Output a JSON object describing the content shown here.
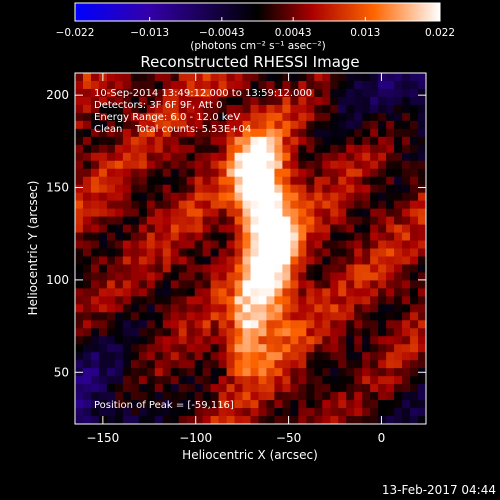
{
  "chart_data": {
    "type": "heatmap",
    "title": "Reconstructed RHESSI Image",
    "xlabel": "Heliocentric X (arcsec)",
    "ylabel": "Heliocentric Y (arcsec)",
    "xlim": [
      -165,
      24
    ],
    "ylim": [
      22,
      212
    ],
    "x_ticks": [
      -150,
      -100,
      -50,
      0
    ],
    "y_ticks": [
      50,
      100,
      150,
      200
    ],
    "colorbar": {
      "range": [
        -0.022,
        0.022
      ],
      "tick_values": [
        -0.022,
        -0.013,
        -0.0043,
        0.0043,
        0.013,
        0.022
      ],
      "tick_labels": [
        "−0.022",
        "−0.013",
        "−0.0043",
        "0.0043",
        "0.013",
        "0.022"
      ],
      "unit_label": "(photons cm⁻² s⁻¹ asec⁻²)",
      "colormap": "heat",
      "colors": [
        "#0000ff",
        "#3300aa",
        "#000000",
        "#aa0000",
        "#ff6600",
        "#ffffff"
      ]
    },
    "annotations": [
      "10-Sep-2014 13:49:12.000 to 13:59:12.000",
      "Detectors: 3F 6F 9F, Att 0",
      "Energy Range: 6.0 - 12.0 keV",
      "Clean    Total counts: 5.53E+04"
    ],
    "peak": {
      "label": "Position of Peak = [-59,116]",
      "x": -59,
      "y": 116
    },
    "source_features": [
      {
        "x": -60,
        "y": 120,
        "intensity": 0.022,
        "extent_x": 10,
        "extent_y": 35
      },
      {
        "x": -70,
        "y": 158,
        "intensity": 0.016,
        "extent_x": 8,
        "extent_y": 15
      },
      {
        "x": -72,
        "y": 80,
        "intensity": 0.011,
        "extent_x": 6,
        "extent_y": 12
      },
      {
        "x": -75,
        "y": 60,
        "intensity": 0.009,
        "extent_x": 6,
        "extent_y": 10
      }
    ]
  },
  "footer": {
    "date": "13-Feb-2017 04:44"
  }
}
